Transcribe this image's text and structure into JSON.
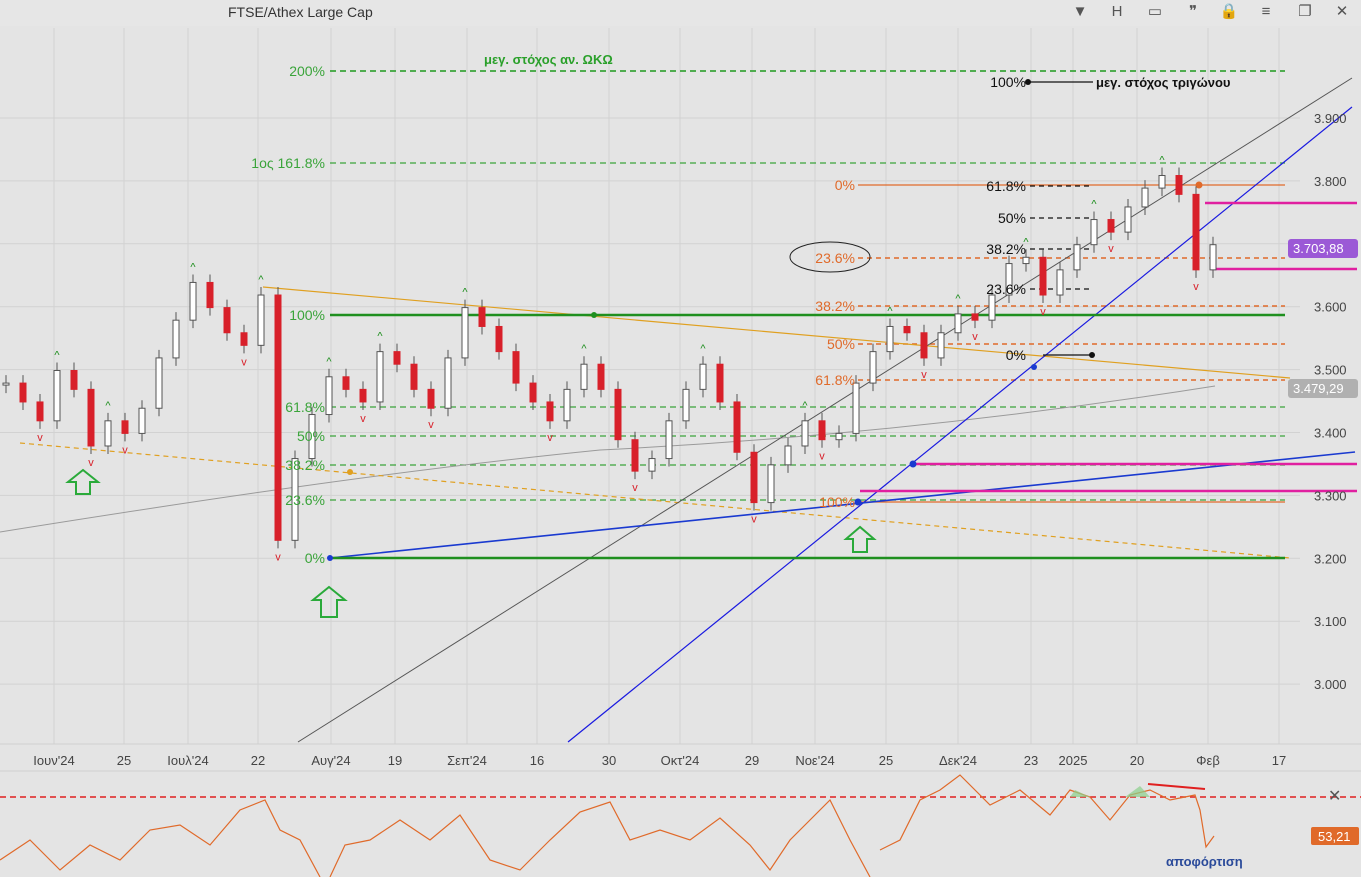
{
  "window": {
    "title": "FTSE/Athex Large Cap",
    "toolbar": [
      "▼",
      "H",
      "▭",
      "❞",
      "🔒",
      "≡",
      "❐",
      "✕"
    ]
  },
  "chart_data": {
    "type": "candlestick",
    "y_axis": {
      "ticks": [
        "3.900",
        "3.800",
        "3.700",
        "3.600",
        "3.500",
        "3.400",
        "3.300",
        "3.200",
        "3.100",
        "3.000"
      ],
      "range": [
        2940,
        4050
      ]
    },
    "x_axis": {
      "ticks": [
        "Ιουν'24",
        "25",
        "Ιουλ'24",
        "22",
        "Αυγ'24",
        "19",
        "Σεπ'24",
        "16",
        "30",
        "Οκτ'24",
        "29",
        "Νοε'24",
        "25",
        "Δεκ'24",
        "23",
        "2025",
        "20",
        "Φεβ",
        "17"
      ]
    },
    "price_labels": [
      {
        "text": "3.703,88",
        "color": "#9b59d6"
      },
      {
        "text": "3.479,29",
        "color": "#b0b0b0"
      }
    ],
    "fib_left": {
      "levels": [
        "200%",
        "1ος 161.8%",
        "100%",
        "61.8%",
        "50%",
        "38.2%",
        "23.6%",
        "0%"
      ],
      "color": "#3aa43a"
    },
    "fib_mid": {
      "levels": [
        "0%",
        "23.6%",
        "38.2%",
        "50%",
        "61.8%",
        "100%"
      ],
      "color": "#e06a2a"
    },
    "fib_right": {
      "levels": [
        "100%",
        "61.8%",
        "50%",
        "38.2%",
        "23.6%",
        "0%"
      ],
      "color": "#111111"
    },
    "annotations": {
      "top_target": "μεγ. στόχος αν. ΩΚΩ",
      "triangle_target": "μεγ. στόχος τριγώνου",
      "oscillator_note": "αποφόρτιση"
    },
    "oscillator": {
      "value_label": "53,21",
      "close_symbol": "✕"
    },
    "series": [
      {
        "values": [
          3480,
          3450,
          3420,
          3500,
          3470,
          3380,
          3420,
          3400,
          3440,
          3520,
          3580,
          3640,
          3600,
          3560,
          3540,
          3620,
          3230,
          3360,
          3430,
          3490,
          3470,
          3450,
          3530,
          3510,
          3470,
          3440,
          3520,
          3600,
          3570,
          3530,
          3480,
          3450,
          3420,
          3470,
          3510,
          3470,
          3390,
          3340,
          3360,
          3420,
          3470,
          3510,
          3450,
          3370,
          3290,
          3350,
          3380,
          3420,
          3390,
          3400,
          3480,
          3530,
          3570,
          3560,
          3520,
          3560,
          3590,
          3580,
          3620,
          3670,
          3680,
          3620,
          3660,
          3700,
          3740,
          3720,
          3760,
          3790,
          3810,
          3780,
          3660,
          3700
        ]
      }
    ]
  }
}
